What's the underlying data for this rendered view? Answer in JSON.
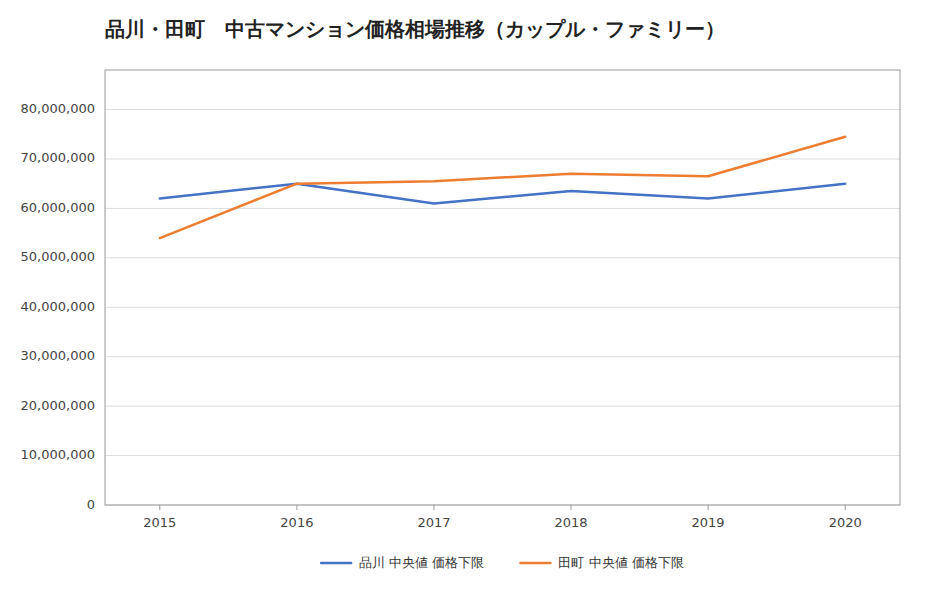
{
  "chart_data": {
    "type": "line",
    "title": "品川・田町　中古マンション価格相場推移（カップル・ファミリー）",
    "x": [
      2015,
      2016,
      2017,
      2018,
      2019,
      2020
    ],
    "xlim": [
      2014.6,
      2020.4
    ],
    "xticks": [
      2015,
      2016,
      2017,
      2018,
      2019,
      2020
    ],
    "series": [
      {
        "name": "品川 中央値 価格下限",
        "color": "#4472C4",
        "values": [
          62000000,
          65000000,
          61000000,
          63500000,
          62000000,
          65000000
        ]
      },
      {
        "name": "田町 中央値 価格下限",
        "color": "#ED7D31",
        "values": [
          54000000,
          65000000,
          65500000,
          67000000,
          66500000,
          74500000
        ]
      }
    ],
    "ylim": [
      0,
      88000000
    ],
    "yticks": [
      0,
      {
        "value": 10000000,
        "label": "10,000,000"
      },
      {
        "value": 20000000,
        "label": "20,000,000"
      },
      {
        "value": 30000000,
        "label": "30,000,000"
      },
      {
        "value": 40000000,
        "label": "40,000,000"
      },
      {
        "value": 50000000,
        "label": "50,000,000"
      },
      {
        "value": 60000000,
        "label": "60,000,000"
      },
      {
        "value": 70000000,
        "label": "70,000,000"
      },
      {
        "value": 80000000,
        "label": "80,000,000"
      }
    ],
    "grid": true,
    "legend": "bottom"
  }
}
